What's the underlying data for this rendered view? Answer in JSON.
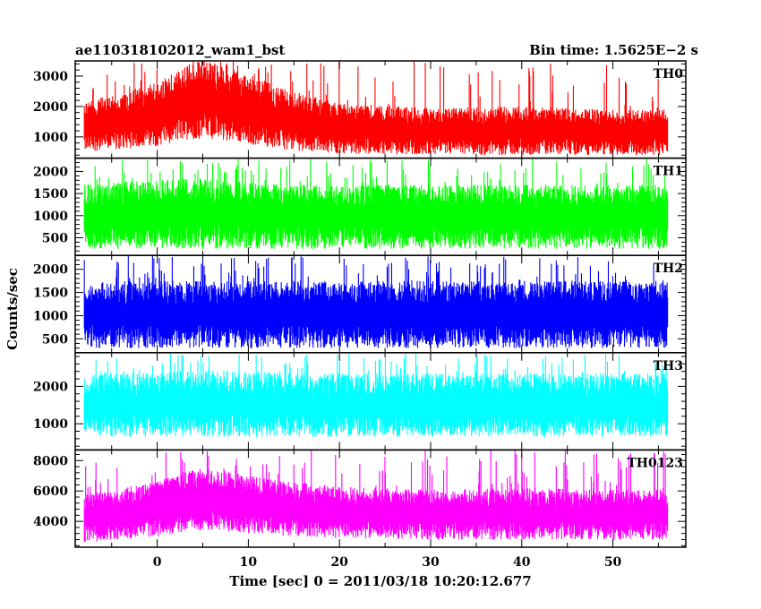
{
  "header": {
    "left": "ae110318102012_wam1_bst",
    "right": "Bin time: 1.5625E−2 s"
  },
  "xlabel": "Time [sec] 0 = 2011/03/18 10:20:12.677",
  "ylabel": "Counts/sec",
  "chart_data": {
    "type": "line",
    "title": "ae110318102012_wam1_bst",
    "subtitle": "Bin time: 1.5625E−2 s",
    "xlabel": "Time [sec] 0 = 2011/03/18 10:20:12.677",
    "ylabel": "Counts/sec",
    "xlim": [
      -9,
      58
    ],
    "xticks": [
      0,
      10,
      20,
      30,
      40,
      50
    ],
    "x_start": -8,
    "x_end": 56,
    "grid": false,
    "envelope_x": [
      -8,
      -4,
      0,
      3,
      5,
      8,
      10,
      15,
      20,
      30,
      40,
      50,
      56
    ],
    "panels": [
      {
        "name": "TH0",
        "color": "#ff0000",
        "ylim": [
          300,
          3500
        ],
        "yticks": [
          1000,
          2000,
          3000
        ],
        "lower": [
          500,
          600,
          700,
          900,
          950,
          850,
          750,
          550,
          450,
          400,
          400,
          400,
          400
        ],
        "upper": [
          2200,
          2400,
          2800,
          3300,
          3500,
          3300,
          3000,
          2500,
          2100,
          1950,
          2000,
          1900,
          1900
        ]
      },
      {
        "name": "TH1",
        "color": "#00ff00",
        "ylim": [
          100,
          2300
        ],
        "yticks": [
          500,
          1000,
          1500,
          2000
        ],
        "lower": [
          250,
          250,
          250,
          250,
          250,
          250,
          250,
          250,
          250,
          250,
          250,
          250,
          250
        ],
        "upper": [
          1700,
          1750,
          1800,
          1850,
          1850,
          1800,
          1750,
          1700,
          1700,
          1700,
          1700,
          1700,
          1700
        ]
      },
      {
        "name": "TH2",
        "color": "#0000ff",
        "ylim": [
          200,
          2300
        ],
        "yticks": [
          500,
          1000,
          1500,
          2000
        ],
        "lower": [
          300,
          300,
          300,
          300,
          300,
          300,
          300,
          300,
          300,
          300,
          300,
          300,
          300
        ],
        "upper": [
          1700,
          1750,
          1750,
          1750,
          1750,
          1750,
          1750,
          1750,
          1750,
          1750,
          1750,
          1750,
          1750
        ]
      },
      {
        "name": "TH3",
        "color": "#00ffff",
        "ylim": [
          300,
          2900
        ],
        "yticks": [
          1000,
          2000
        ],
        "lower": [
          700,
          650,
          650,
          650,
          650,
          650,
          650,
          650,
          650,
          650,
          650,
          650,
          650
        ],
        "upper": [
          2300,
          2350,
          2400,
          2400,
          2400,
          2400,
          2400,
          2350,
          2350,
          2350,
          2350,
          2350,
          2350
        ]
      },
      {
        "name": "TH0123",
        "color": "#ff00ff",
        "ylim": [
          2300,
          8700
        ],
        "yticks": [
          4000,
          6000,
          8000
        ],
        "lower": [
          2600,
          2800,
          3000,
          3300,
          3400,
          3300,
          3200,
          3000,
          2900,
          2800,
          2800,
          2800,
          2800
        ],
        "upper": [
          5800,
          6200,
          6600,
          7300,
          7500,
          7300,
          7000,
          6600,
          6300,
          6100,
          6200,
          6100,
          6100
        ]
      }
    ]
  }
}
